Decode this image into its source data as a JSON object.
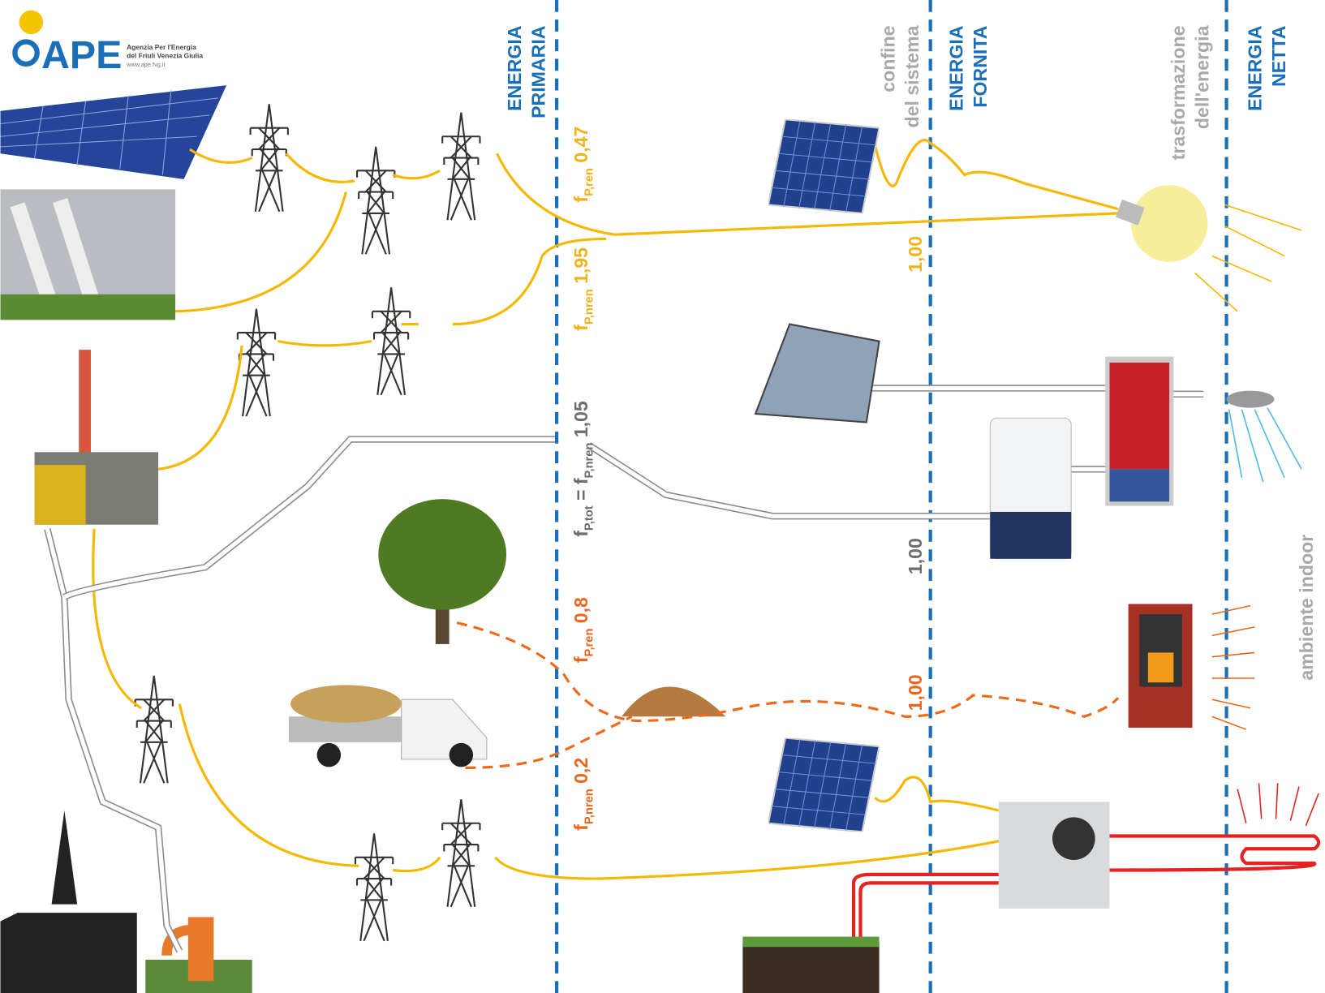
{
  "logo": {
    "name": "APE",
    "line1": "Agenzia Per l'Energia",
    "line2": "del Friuli Venezia Giulia",
    "url": "www.ape.fvg.it"
  },
  "boundaries": [
    {
      "lines": [
        "ENERGIA",
        "PRIMARIA"
      ]
    },
    {
      "lines": [
        "confine",
        "del sistema"
      ]
    },
    {
      "lines": [
        "ENERGIA",
        "FORNITA"
      ]
    },
    {
      "lines": [
        "trasformazione",
        "dell'energia"
      ]
    },
    {
      "lines": [
        "ENERGIA",
        "NETTA"
      ]
    }
  ],
  "factors": [
    {
      "symbol": "f",
      "subscript": "P,ren",
      "value": "0,47"
    },
    {
      "symbol": "f",
      "subscript": "P,nren",
      "value": "1,95"
    },
    {
      "symbol": "f",
      "subscript": "P,tot",
      "equals": "=",
      "symbol2": "f",
      "subscript2": "P,nren",
      "value": "1,05"
    },
    {
      "symbol": "f",
      "subscript": "P,ren",
      "value": "0,8"
    },
    {
      "symbol": "f",
      "subscript": "P,nren",
      "value": "0,2"
    }
  ],
  "delivered_factors": [
    "1,00",
    "1,00",
    "1,00"
  ],
  "indoor_label": "ambiente indoor"
}
